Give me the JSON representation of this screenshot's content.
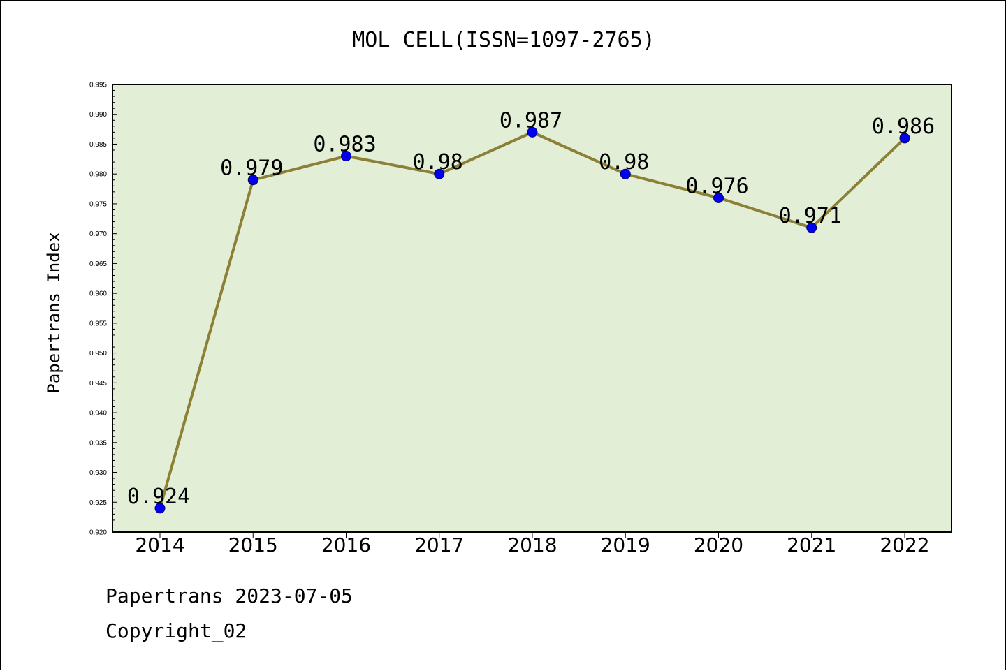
{
  "chart_data": {
    "type": "line",
    "title": "MOL CELL(ISSN=1097-2765)",
    "xlabel": "",
    "ylabel": "Papertrans Index",
    "categories": [
      "2014",
      "2015",
      "2016",
      "2017",
      "2018",
      "2019",
      "2020",
      "2021",
      "2022"
    ],
    "values": [
      0.924,
      0.979,
      0.983,
      0.98,
      0.987,
      0.98,
      0.976,
      0.971,
      0.986
    ],
    "data_labels": [
      "0.924",
      "0.979",
      "0.983",
      "0.98",
      "0.987",
      "0.98",
      "0.976",
      "0.971",
      "0.986"
    ],
    "ylim": [
      0.92,
      0.995
    ],
    "yticks": [
      "0.920",
      "0.925",
      "0.930",
      "0.935",
      "0.940",
      "0.945",
      "0.950",
      "0.955",
      "0.960",
      "0.965",
      "0.970",
      "0.975",
      "0.980",
      "0.985",
      "0.990",
      "0.995"
    ],
    "grid": false,
    "colors": {
      "plot_bg": "#e2efd6",
      "line": "#8b8035",
      "marker": "#0000ee"
    }
  },
  "footer": {
    "line1": "Papertrans 2023-07-05",
    "line2": "Copyright_02"
  }
}
